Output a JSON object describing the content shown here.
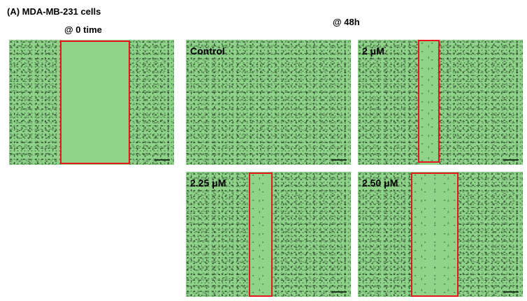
{
  "figure": {
    "title": "(A) MDA-MB-231 cells",
    "time0_title": "@ 0 time",
    "time48_title": "@ 48h"
  },
  "panels": {
    "zero": {
      "label": ""
    },
    "control": {
      "label": "Control"
    },
    "p2": {
      "label": "2 μM"
    },
    "p225": {
      "label": "2.25 μM"
    },
    "p250": {
      "label": "2.50 μM"
    }
  },
  "colors": {
    "wound_box": "#e8161a",
    "background_cells": "#8fd289"
  }
}
